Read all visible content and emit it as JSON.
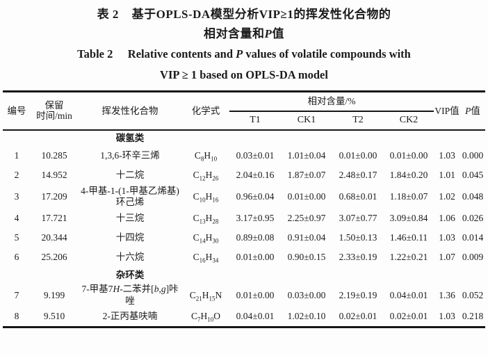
{
  "palette": {
    "background": "#fdfdfd",
    "ink": "#1b1b1b",
    "rule": "#161616"
  },
  "title": {
    "zh_line1_segs": [
      {
        "t": "表 2"
      },
      {
        "gap": "1.1em"
      },
      {
        "t": "基于OPLS-DA模型分析VIP≥1的挥发性化合物的"
      }
    ],
    "zh_line2_segs": [
      {
        "t": "相对含量和"
      },
      {
        "t": "P",
        "i": true
      },
      {
        "t": "值"
      }
    ],
    "en_line1_segs": [
      {
        "t": "Table 2"
      },
      {
        "gap": "1.3em"
      },
      {
        "t": "Relative contents and "
      },
      {
        "t": "P",
        "i": true
      },
      {
        "t": " values of volatile compounds with"
      }
    ],
    "en_line2": "VIP ≥ 1 based on OPLS-DA model"
  },
  "table": {
    "header": {
      "no": "编号",
      "rt_line1": "保留",
      "rt_line2": "时间/min",
      "compound": "挥发性化合物",
      "formula": "化学式",
      "rel_content": "相对含量/%",
      "groups": [
        "T1",
        "CK1",
        "T2",
        "CK2"
      ],
      "vip": "VIP值",
      "p_segs": [
        {
          "t": "P",
          "i": true
        },
        {
          "t": "值"
        }
      ]
    },
    "rows": [
      {
        "type": "category",
        "label": "碳氢类"
      },
      {
        "type": "data",
        "no": "1",
        "rt": "10.285",
        "name": [
          {
            "t": "1,3,6-环辛三烯"
          }
        ],
        "formula": [
          {
            "t": "C"
          },
          {
            "t": "8",
            "sub": true
          },
          {
            "t": "H"
          },
          {
            "t": "10",
            "sub": true
          }
        ],
        "t1": "0.03±0.01",
        "ck1": "1.01±0.04",
        "t2": "0.01±0.00",
        "ck2": "0.01±0.00",
        "vip": "1.03",
        "p": "0.000"
      },
      {
        "type": "data",
        "no": "2",
        "rt": "14.952",
        "name": [
          {
            "t": "十二烷"
          }
        ],
        "formula": [
          {
            "t": "C"
          },
          {
            "t": "12",
            "sub": true
          },
          {
            "t": "H"
          },
          {
            "t": "26",
            "sub": true
          }
        ],
        "t1": "2.04±0.16",
        "ck1": "1.87±0.07",
        "t2": "2.48±0.17",
        "ck2": "1.84±0.20",
        "vip": "1.01",
        "p": "0.045"
      },
      {
        "type": "data",
        "no": "3",
        "rt": "17.209",
        "name": [
          {
            "t": "4-甲基-1-(1-甲基乙烯基)"
          },
          {
            "br": true
          },
          {
            "t": "环己烯"
          }
        ],
        "formula": [
          {
            "t": "C"
          },
          {
            "t": "10",
            "sub": true
          },
          {
            "t": "H"
          },
          {
            "t": "16",
            "sub": true
          }
        ],
        "t1": "0.96±0.04",
        "ck1": "0.01±0.00",
        "t2": "0.68±0.01",
        "ck2": "1.18±0.07",
        "vip": "1.02",
        "p": "0.048"
      },
      {
        "type": "data",
        "no": "4",
        "rt": "17.721",
        "name": [
          {
            "t": "十三烷"
          }
        ],
        "formula": [
          {
            "t": "C"
          },
          {
            "t": "13",
            "sub": true
          },
          {
            "t": "H"
          },
          {
            "t": "28",
            "sub": true
          }
        ],
        "t1": "3.17±0.95",
        "ck1": "2.25±0.97",
        "t2": "3.07±0.77",
        "ck2": "3.09±0.84",
        "vip": "1.06",
        "p": "0.026"
      },
      {
        "type": "data",
        "no": "5",
        "rt": "20.344",
        "name": [
          {
            "t": "十四烷"
          }
        ],
        "formula": [
          {
            "t": "C"
          },
          {
            "t": "14",
            "sub": true
          },
          {
            "t": "H"
          },
          {
            "t": "30",
            "sub": true
          }
        ],
        "t1": "0.89±0.08",
        "ck1": "0.91±0.04",
        "t2": "1.50±0.13",
        "ck2": "1.46±0.11",
        "vip": "1.03",
        "p": "0.014"
      },
      {
        "type": "data",
        "no": "6",
        "rt": "25.206",
        "name": [
          {
            "t": "十六烷"
          }
        ],
        "formula": [
          {
            "t": "C"
          },
          {
            "t": "16",
            "sub": true
          },
          {
            "t": "H"
          },
          {
            "t": "34",
            "sub": true
          }
        ],
        "t1": "0.01±0.00",
        "ck1": "0.90±0.15",
        "t2": "2.33±0.19",
        "ck2": "1.22±0.21",
        "vip": "1.07",
        "p": "0.009"
      },
      {
        "type": "category",
        "label": "杂环类"
      },
      {
        "type": "data",
        "no": "7",
        "rt": "9.199",
        "name": [
          {
            "t": "7-甲基7"
          },
          {
            "t": "H",
            "i": true
          },
          {
            "t": "-二苯并["
          },
          {
            "t": "b",
            "i": true
          },
          {
            "t": ","
          },
          {
            "t": "g",
            "i": true
          },
          {
            "t": "]咔唑"
          }
        ],
        "formula": [
          {
            "t": "C"
          },
          {
            "t": "21",
            "sub": true
          },
          {
            "t": "H"
          },
          {
            "t": "15",
            "sub": true
          },
          {
            "t": "N"
          }
        ],
        "t1": "0.01±0.00",
        "ck1": "0.03±0.00",
        "t2": "2.19±0.19",
        "ck2": "0.04±0.01",
        "vip": "1.36",
        "p": "0.052"
      },
      {
        "type": "data",
        "no": "8",
        "rt": "9.510",
        "name": [
          {
            "t": "2-正丙基呋喃"
          }
        ],
        "formula": [
          {
            "t": "C"
          },
          {
            "t": "7",
            "sub": true
          },
          {
            "t": "H"
          },
          {
            "t": "10",
            "sub": true
          },
          {
            "t": "O"
          }
        ],
        "t1": "0.04±0.01",
        "ck1": "1.02±0.10",
        "t2": "0.02±0.01",
        "ck2": "0.02±0.01",
        "vip": "1.03",
        "p": "0.218"
      }
    ]
  }
}
